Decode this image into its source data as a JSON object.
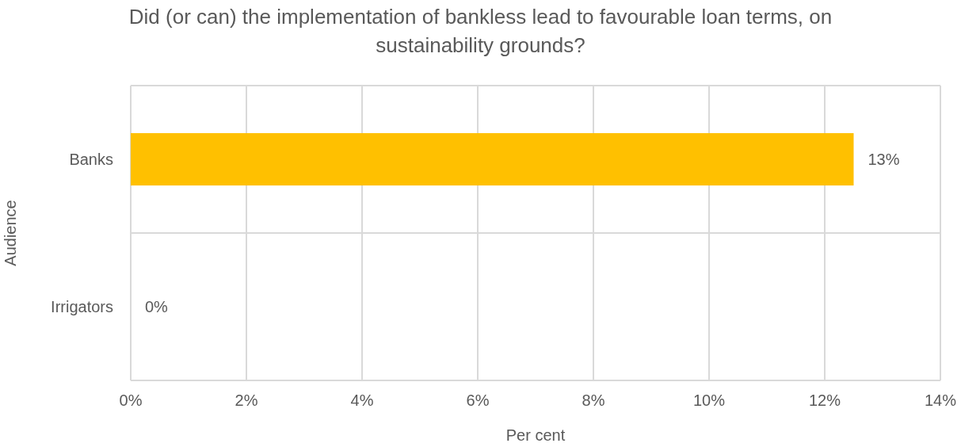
{
  "chart_data": {
    "type": "bar",
    "orientation": "horizontal",
    "title": "Did (or can) the implementation of bankless lead to favourable loan terms, on sustainability grounds?",
    "xlabel": "Per cent",
    "ylabel": "Audience",
    "categories": [
      "Banks",
      "Irrigators"
    ],
    "values": [
      12.5,
      0
    ],
    "value_labels": [
      "13%",
      "0%"
    ],
    "color": "#ffc000",
    "xlim": [
      0,
      14
    ],
    "xticks": [
      {
        "value": 0,
        "label": "0%"
      },
      {
        "value": 2,
        "label": "2%"
      },
      {
        "value": 4,
        "label": "4%"
      },
      {
        "value": 6,
        "label": "6%"
      },
      {
        "value": 8,
        "label": "8%"
      },
      {
        "value": 10,
        "label": "10%"
      },
      {
        "value": 12,
        "label": "12%"
      },
      {
        "value": 14,
        "label": "14%"
      }
    ],
    "grid": true
  }
}
